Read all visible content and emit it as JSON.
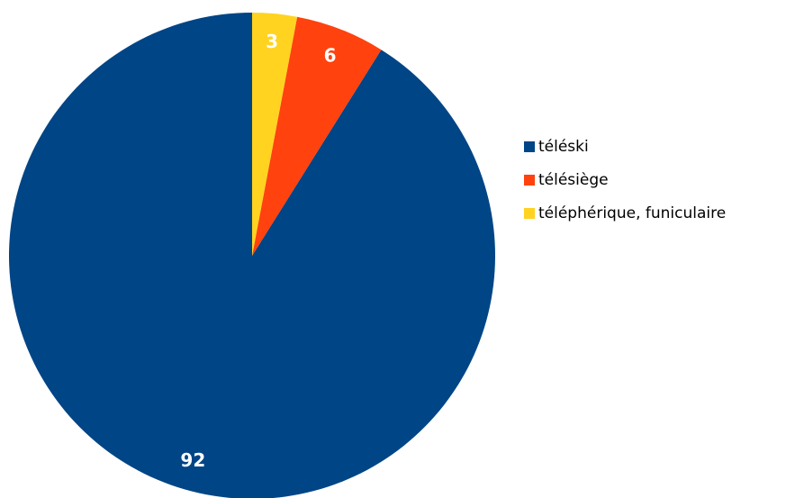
{
  "chart_data": {
    "type": "pie",
    "categories": [
      "téléski",
      "télésiège",
      "téléphérique, funiculaire"
    ],
    "values": [
      92,
      6,
      3
    ],
    "colors": [
      "#004586",
      "#ff420e",
      "#ffd320"
    ],
    "legend": "right"
  }
}
